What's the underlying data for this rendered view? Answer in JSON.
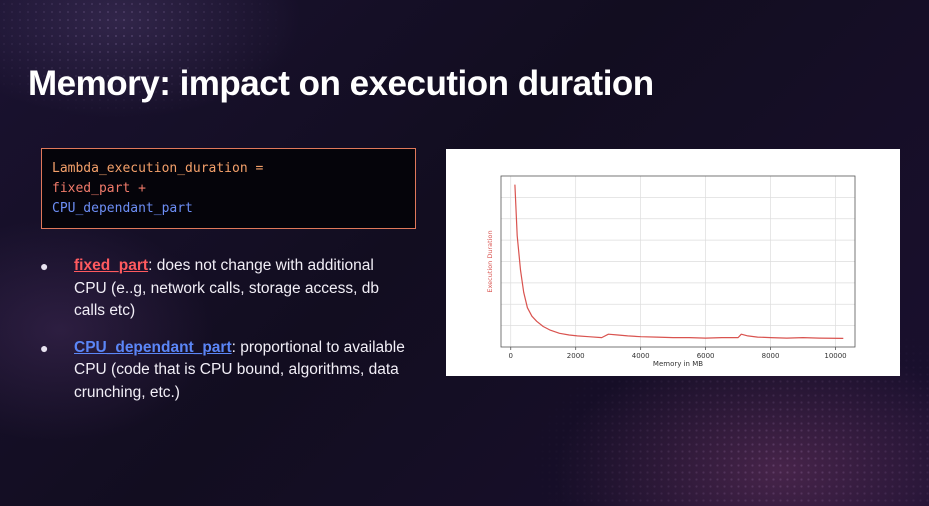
{
  "slide": {
    "title": "Memory: impact on execution duration"
  },
  "code": {
    "line1": "Lambda_execution_duration =",
    "line2": "fixed_part +",
    "line3": "CPU_dependant_part"
  },
  "bullets": [
    {
      "term": "fixed_part",
      "text": ": does not change with additional CPU (e..g, network calls, storage access, db calls etc)"
    },
    {
      "term": "CPU_dependant_part",
      "text": ": proportional to available CPU (code that is CPU bound, algorithms, data crunching, etc.)"
    }
  ],
  "colors": {
    "term_fixed": "#ff5a5f",
    "term_cpu": "#5b86f7",
    "line": "#d9534f"
  },
  "chart_data": {
    "type": "line",
    "title": "",
    "xlabel": "Memory in MB",
    "ylabel": "Execution Duration",
    "xlim": [
      -300,
      10600
    ],
    "ylim": [
      0,
      1
    ],
    "xticks": [
      0,
      2000,
      4000,
      6000,
      8000,
      10000
    ],
    "grid": true,
    "series": [
      {
        "x": [
          128,
          200,
          300,
          400,
          512,
          650,
          800,
          1000,
          1200,
          1500,
          1800,
          2048,
          2400,
          2800,
          3008,
          3300,
          3600,
          4000,
          4500,
          5000,
          5500,
          6000,
          6500,
          7000,
          7100,
          7300,
          7600,
          8000,
          8500,
          9000,
          9500,
          10240
        ],
        "y": [
          0.95,
          0.65,
          0.45,
          0.32,
          0.23,
          0.18,
          0.15,
          0.12,
          0.1,
          0.08,
          0.07,
          0.065,
          0.06,
          0.055,
          0.075,
          0.07,
          0.065,
          0.06,
          0.058,
          0.055,
          0.055,
          0.052,
          0.055,
          0.055,
          0.075,
          0.065,
          0.058,
          0.055,
          0.052,
          0.055,
          0.052,
          0.05
        ]
      }
    ]
  }
}
